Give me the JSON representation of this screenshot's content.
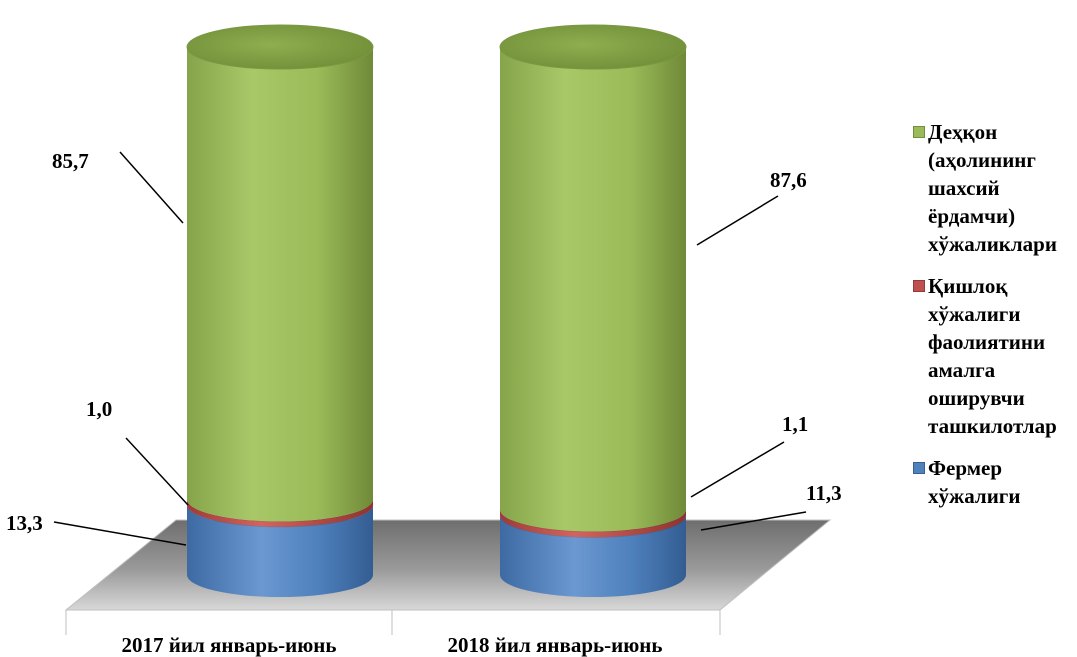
{
  "chart_data": {
    "type": "bar",
    "stacked": true,
    "shape": "cylinder",
    "categories": [
      "2017 йил январь-июнь",
      "2018 йил январь-июнь"
    ],
    "series": [
      {
        "name": "Фермер хўжалиги",
        "values": [
          13.3,
          11.3
        ],
        "labels": [
          "13,3",
          "11,3"
        ],
        "color": "#4f81bd"
      },
      {
        "name": "Қишлоқ хўжалиги фаолиятини амалга оширувчи ташкилотлар",
        "values": [
          1.0,
          1.1
        ],
        "labels": [
          "1,0",
          "1,1"
        ],
        "color": "#c0504d"
      },
      {
        "name": "Деҳқон (аҳолининг шахсий ёрдамчи) хўжаликлари",
        "values": [
          85.7,
          87.6
        ],
        "labels": [
          "85,7",
          "87,6"
        ],
        "color": "#9bbb59"
      }
    ],
    "ylim": [
      0,
      100
    ],
    "legend_position": "right",
    "grid": false
  },
  "legend": [
    {
      "text": "Деҳқон\n(аҳолининг\nшахсий\nёрдамчи)\nхўжаликлари",
      "color": "#9bbb59"
    },
    {
      "text": "Қишлоқ\nхўжалиги\nфаолиятини\nамалга\nоширувчи\nташкилотлар",
      "color": "#c0504d"
    },
    {
      "text": "Фермер\nхўжалиги",
      "color": "#4f81bd"
    }
  ]
}
